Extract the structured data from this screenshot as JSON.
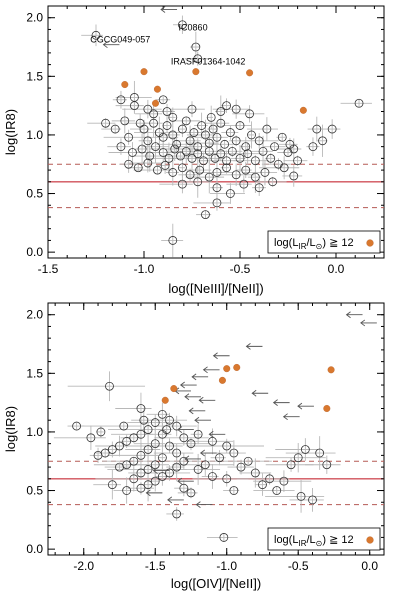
{
  "chart_data": [
    {
      "type": "scatter",
      "xlabel": "log([NeIII]/[NeII])",
      "ylabel": "log(IR8)",
      "xlim": [
        -1.5,
        0.25
      ],
      "ylim": [
        -0.05,
        2.1
      ],
      "xticks": [
        "-1.5",
        "-1.0",
        "-0.5",
        "0.0"
      ],
      "xtick_values": [
        -1.5,
        -1.0,
        -0.5,
        0.0
      ],
      "yticks": [
        "0.0",
        "0.5",
        "1.0",
        "1.5",
        "2.0"
      ],
      "ytick_values": [
        0.0,
        0.5,
        1.0,
        1.5,
        2.0
      ],
      "grid": false,
      "legend": {
        "text": "log(L_IR/L_⊙) ≧ 12",
        "placement": "bottom-right"
      },
      "reference_lines": {
        "solid": 0.6,
        "dashed": [
          0.38,
          0.75
        ]
      },
      "annotations": [
        {
          "text": "CGCG049-057",
          "x": -1.28,
          "y": 1.79
        },
        {
          "text": "IC0860",
          "x": -0.82,
          "y": 1.89
        },
        {
          "text": "IRASF01364-1042",
          "x": -0.86,
          "y": 1.6
        }
      ],
      "highlighted": [
        {
          "x": -1.1,
          "y": 1.43
        },
        {
          "x": -1.0,
          "y": 1.54
        },
        {
          "x": -0.93,
          "y": 1.39
        },
        {
          "x": -0.94,
          "y": 1.27
        },
        {
          "x": -0.73,
          "y": 1.54
        },
        {
          "x": -0.45,
          "y": 1.53
        },
        {
          "x": -0.17,
          "y": 1.21
        }
      ],
      "upper_limits": [
        {
          "x": -0.88,
          "y": 2.07
        },
        {
          "x": -1.18,
          "y": 1.77
        }
      ],
      "points": [
        [
          -1.25,
          1.85
        ],
        [
          -0.8,
          1.94
        ],
        [
          -0.73,
          1.75
        ],
        [
          -0.72,
          1.65
        ],
        [
          0.12,
          1.27
        ],
        [
          -0.1,
          1.05
        ],
        [
          -0.02,
          1.05
        ],
        [
          -0.07,
          0.95
        ],
        [
          -0.12,
          0.9
        ],
        [
          -1.12,
          1.3
        ],
        [
          -1.05,
          1.25
        ],
        [
          -0.98,
          1.22
        ],
        [
          -0.88,
          1.2
        ],
        [
          -0.75,
          1.22
        ],
        [
          -0.6,
          1.2
        ],
        [
          -0.52,
          1.22
        ],
        [
          -0.45,
          1.18
        ],
        [
          -1.2,
          1.1
        ],
        [
          -1.15,
          1.05
        ],
        [
          -1.1,
          1.12
        ],
        [
          -1.08,
          0.98
        ],
        [
          -1.02,
          1.1
        ],
        [
          -1.0,
          1.05
        ],
        [
          -0.98,
          0.95
        ],
        [
          -0.95,
          1.1
        ],
        [
          -0.92,
          1.02
        ],
        [
          -0.9,
          0.98
        ],
        [
          -0.88,
          1.08
        ],
        [
          -0.85,
          1.0
        ],
        [
          -0.83,
          0.92
        ],
        [
          -0.8,
          1.05
        ],
        [
          -0.78,
          1.12
        ],
        [
          -0.76,
          0.95
        ],
        [
          -0.74,
          1.02
        ],
        [
          -0.72,
          0.9
        ],
        [
          -0.7,
          1.08
        ],
        [
          -0.68,
          1.0
        ],
        [
          -0.66,
          0.93
        ],
        [
          -0.64,
          1.05
        ],
        [
          -0.62,
          0.98
        ],
        [
          -0.6,
          1.1
        ],
        [
          -0.58,
          0.92
        ],
        [
          -0.55,
          1.02
        ],
        [
          -0.52,
          0.95
        ],
        [
          -0.5,
          1.08
        ],
        [
          -0.47,
          0.9
        ],
        [
          -0.44,
          1.0
        ],
        [
          -0.4,
          0.95
        ],
        [
          -0.36,
          1.05
        ],
        [
          -0.32,
          0.9
        ],
        [
          -0.28,
          0.98
        ],
        [
          -0.25,
          0.85
        ],
        [
          -1.12,
          0.9
        ],
        [
          -1.06,
          0.85
        ],
        [
          -1.01,
          0.88
        ],
        [
          -0.97,
          0.82
        ],
        [
          -0.94,
          0.9
        ],
        [
          -0.9,
          0.85
        ],
        [
          -0.87,
          0.8
        ],
        [
          -0.84,
          0.88
        ],
        [
          -0.81,
          0.82
        ],
        [
          -0.78,
          0.86
        ],
        [
          -0.75,
          0.8
        ],
        [
          -0.72,
          0.84
        ],
        [
          -0.69,
          0.78
        ],
        [
          -0.66,
          0.86
        ],
        [
          -0.63,
          0.8
        ],
        [
          -0.6,
          0.84
        ],
        [
          -0.57,
          0.78
        ],
        [
          -0.54,
          0.86
        ],
        [
          -0.5,
          0.8
        ],
        [
          -0.46,
          0.84
        ],
        [
          -0.42,
          0.78
        ],
        [
          -0.38,
          0.86
        ],
        [
          -0.34,
          0.8
        ],
        [
          -1.08,
          0.75
        ],
        [
          -1.03,
          0.72
        ],
        [
          -0.98,
          0.76
        ],
        [
          -0.93,
          0.7
        ],
        [
          -0.89,
          0.74
        ],
        [
          -0.85,
          0.68
        ],
        [
          -0.8,
          0.72
        ],
        [
          -0.76,
          0.66
        ],
        [
          -0.71,
          0.7
        ],
        [
          -0.66,
          0.64
        ],
        [
          -0.62,
          0.68
        ],
        [
          -0.57,
          0.72
        ],
        [
          -0.52,
          0.66
        ],
        [
          -0.47,
          0.7
        ],
        [
          -0.42,
          0.64
        ],
        [
          -0.37,
          0.68
        ],
        [
          -0.33,
          0.6
        ],
        [
          -0.27,
          0.72
        ],
        [
          -0.22,
          0.65
        ],
        [
          -0.62,
          0.55
        ],
        [
          -0.55,
          0.5
        ],
        [
          -0.48,
          0.58
        ],
        [
          -0.4,
          0.55
        ],
        [
          -0.72,
          0.6
        ],
        [
          -0.8,
          0.58
        ],
        [
          -0.62,
          0.42
        ],
        [
          -0.68,
          0.32
        ],
        [
          -0.85,
          0.1
        ],
        [
          -0.22,
          0.88
        ],
        [
          -0.2,
          0.78
        ],
        [
          -0.24,
          0.92
        ],
        [
          -0.3,
          0.75
        ],
        [
          -0.95,
          1.18
        ],
        [
          -0.85,
          1.15
        ],
        [
          -0.65,
          1.15
        ],
        [
          -0.57,
          1.25
        ],
        [
          -1.05,
          1.32
        ],
        [
          -0.9,
          1.3
        ]
      ]
    },
    {
      "type": "scatter",
      "xlabel": "log([OIV]/[NeII])",
      "ylabel": "log(IR8)",
      "xlim": [
        -2.25,
        0.1
      ],
      "ylim": [
        -0.05,
        2.1
      ],
      "xticks": [
        "-2.0",
        "-1.5",
        "-1.0",
        "-0.5",
        "0.0"
      ],
      "xtick_values": [
        -2.0,
        -1.5,
        -1.0,
        -0.5,
        0.0
      ],
      "yticks": [
        "0.0",
        "0.5",
        "1.0",
        "1.5",
        "2.0"
      ],
      "ytick_values": [
        0.0,
        0.5,
        1.0,
        1.5,
        2.0
      ],
      "grid": false,
      "legend": {
        "text": "log(L_IR/L_⊙) ≧ 12",
        "placement": "bottom-right"
      },
      "reference_lines": {
        "solid": 0.6,
        "dashed": [
          0.38,
          0.75
        ]
      },
      "highlighted": [
        {
          "x": -1.37,
          "y": 1.37
        },
        {
          "x": -1.43,
          "y": 1.27
        },
        {
          "x": -1.0,
          "y": 1.54
        },
        {
          "x": -0.93,
          "y": 1.55
        },
        {
          "x": -1.03,
          "y": 1.44
        },
        {
          "x": -0.27,
          "y": 1.53
        },
        {
          "x": -0.3,
          "y": 1.2
        }
      ],
      "upper_limits": [
        {
          "x": -0.12,
          "y": 2.0
        },
        {
          "x": -0.02,
          "y": 1.93
        },
        {
          "x": -0.82,
          "y": 1.73
        },
        {
          "x": -1.05,
          "y": 1.65
        },
        {
          "x": -1.12,
          "y": 1.53
        },
        {
          "x": -1.2,
          "y": 1.47
        },
        {
          "x": -1.28,
          "y": 1.4
        },
        {
          "x": -1.32,
          "y": 1.35
        },
        {
          "x": -0.78,
          "y": 1.33
        },
        {
          "x": -1.25,
          "y": 1.3
        },
        {
          "x": -1.15,
          "y": 1.27
        },
        {
          "x": -0.63,
          "y": 1.25
        },
        {
          "x": -0.46,
          "y": 1.22
        },
        {
          "x": -0.56,
          "y": 1.13
        },
        {
          "x": -1.22,
          "y": 1.18
        },
        {
          "x": -1.18,
          "y": 1.1
        },
        {
          "x": -1.3,
          "y": 1.02
        },
        {
          "x": -1.08,
          "y": 0.98
        },
        {
          "x": -1.14,
          "y": 0.82
        },
        {
          "x": -1.25,
          "y": 0.77
        },
        {
          "x": -1.47,
          "y": 0.67
        },
        {
          "x": -1.3,
          "y": 0.58
        },
        {
          "x": -1.52,
          "y": 0.48
        },
        {
          "x": -1.37,
          "y": 0.42
        },
        {
          "x": -1.17,
          "y": 0.38
        }
      ],
      "points": [
        [
          -1.82,
          1.39
        ],
        [
          -1.6,
          1.2
        ],
        [
          -1.45,
          1.15
        ],
        [
          -1.5,
          1.08
        ],
        [
          -1.55,
          1.02
        ],
        [
          -1.6,
          0.98
        ],
        [
          -1.65,
          0.95
        ],
        [
          -1.7,
          0.92
        ],
        [
          -1.75,
          0.88
        ],
        [
          -1.8,
          0.85
        ],
        [
          -1.85,
          0.82
        ],
        [
          -1.9,
          0.8
        ],
        [
          -1.4,
          1.1
        ],
        [
          -1.35,
          1.05
        ],
        [
          -1.3,
          0.95
        ],
        [
          -1.25,
          0.9
        ],
        [
          -1.45,
          0.98
        ],
        [
          -1.5,
          0.9
        ],
        [
          -1.55,
          0.85
        ],
        [
          -1.6,
          0.8
        ],
        [
          -1.65,
          0.75
        ],
        [
          -1.7,
          0.72
        ],
        [
          -1.75,
          0.7
        ],
        [
          -1.4,
          0.88
        ],
        [
          -1.35,
          0.82
        ],
        [
          -1.45,
          0.78
        ],
        [
          -1.5,
          0.72
        ],
        [
          -1.55,
          0.68
        ],
        [
          -1.6,
          0.65
        ],
        [
          -1.65,
          0.6
        ],
        [
          -1.3,
          0.75
        ],
        [
          -1.35,
          0.7
        ],
        [
          -1.4,
          0.65
        ],
        [
          -1.45,
          0.62
        ],
        [
          -1.5,
          0.58
        ],
        [
          -1.55,
          0.55
        ],
        [
          -1.6,
          0.52
        ],
        [
          -1.7,
          0.5
        ],
        [
          -1.8,
          0.55
        ],
        [
          -2.05,
          1.05
        ],
        [
          -1.95,
          0.95
        ],
        [
          -1.88,
          1.0
        ],
        [
          -1.72,
          1.05
        ],
        [
          -1.58,
          1.1
        ],
        [
          -1.42,
          1.02
        ],
        [
          -1.2,
          0.98
        ],
        [
          -1.1,
          0.92
        ],
        [
          -1.0,
          0.88
        ],
        [
          -0.95,
          0.82
        ],
        [
          -1.05,
          0.78
        ],
        [
          -1.15,
          0.72
        ],
        [
          -1.2,
          0.68
        ],
        [
          -1.1,
          0.62
        ],
        [
          -1.0,
          0.6
        ],
        [
          -0.9,
          0.7
        ],
        [
          -0.85,
          0.75
        ],
        [
          -0.8,
          0.65
        ],
        [
          -0.7,
          0.6
        ],
        [
          -0.6,
          0.58
        ],
        [
          -0.55,
          0.72
        ],
        [
          -0.5,
          0.78
        ],
        [
          -0.45,
          0.85
        ],
        [
          -0.35,
          0.82
        ],
        [
          -0.3,
          0.72
        ],
        [
          -1.3,
          0.52
        ],
        [
          -1.25,
          0.48
        ],
        [
          -1.35,
          0.3
        ],
        [
          -1.02,
          0.1
        ],
        [
          -0.95,
          0.5
        ],
        [
          -0.75,
          0.55
        ],
        [
          -0.65,
          0.5
        ],
        [
          -0.48,
          0.45
        ],
        [
          -0.4,
          0.42
        ]
      ]
    }
  ]
}
